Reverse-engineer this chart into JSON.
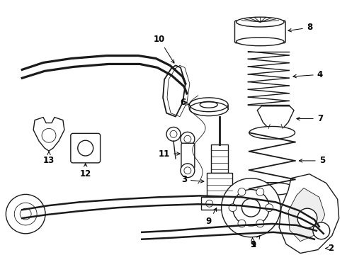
{
  "bg_color": "#ffffff",
  "line_color": "#1a1a1a",
  "lw_main": 1.0,
  "lw_thick": 1.8,
  "lw_thin": 0.6,
  "label_fontsize": 8.5
}
